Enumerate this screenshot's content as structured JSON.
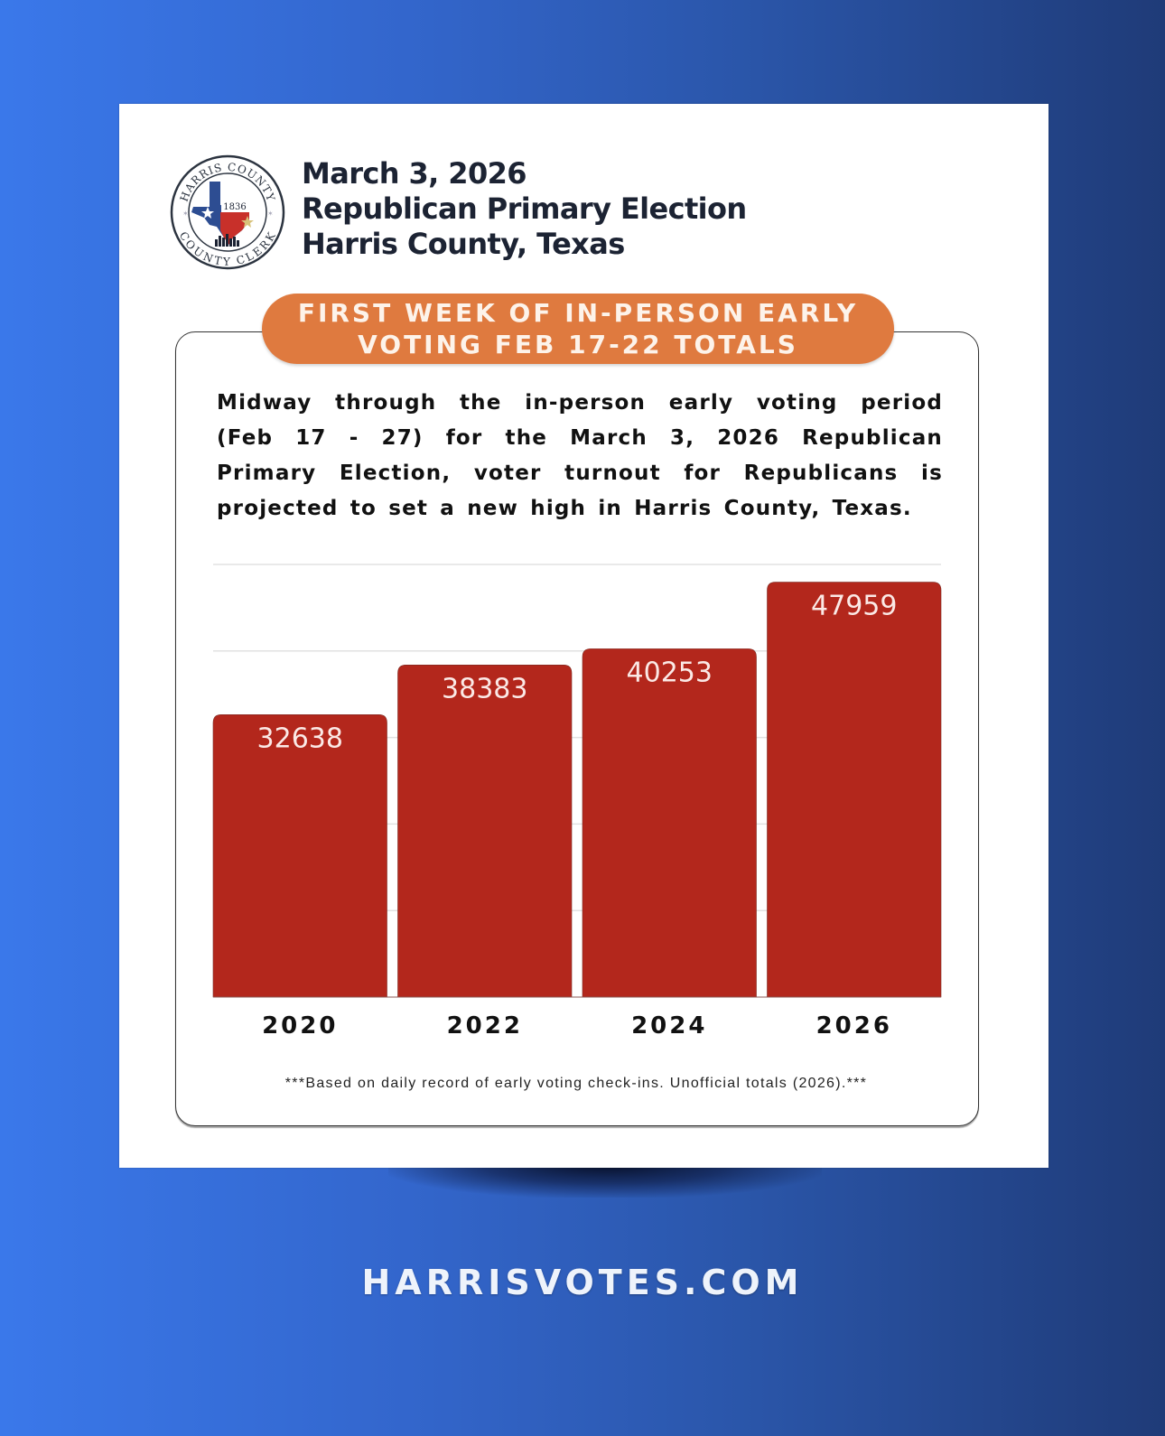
{
  "header": {
    "line1": "March 3, 2026",
    "line2": "Republican Primary Election",
    "line3": "Harris County, Texas"
  },
  "logo": {
    "top_text": "HARRIS COUNTY",
    "bottom_text": "COUNTY CLERK",
    "year": "1836",
    "icon": "harris-county-clerk-seal"
  },
  "banner": {
    "line1": "FIRST WEEK OF IN-PERSON EARLY",
    "line2": "VOTING FEB 17-22 TOTALS"
  },
  "intro": "Midway through the in-person early voting period (Feb 17 - 27) for the March 3, 2026 Republican Primary Election, voter turnout for Republicans is projected to set a new high in Harris County, Texas.",
  "footnote": "***Based on daily record of early voting check-ins. Unofficial totals (2026).***",
  "website": "HARRISVOTES.COM",
  "colors": {
    "bar": "#b3271c",
    "banner": "#df7a3f",
    "background_left": "#3a78ea",
    "background_right": "#1f3b78"
  },
  "chart_data": {
    "type": "bar",
    "title": "First Week of In-Person Early Voting Feb 17-22 Totals",
    "categories": [
      "2020",
      "2022",
      "2024",
      "2026"
    ],
    "values": [
      32638,
      38383,
      40253,
      47959
    ],
    "data_labels": [
      "32638",
      "38383",
      "40253",
      "47959"
    ],
    "xlabel": "",
    "ylabel": "",
    "ylim": [
      0,
      50000
    ],
    "gridlines": [
      10000,
      20000,
      30000,
      40000,
      50000
    ],
    "grid": true,
    "legend": "none",
    "y_tick_labels_shown": false
  }
}
